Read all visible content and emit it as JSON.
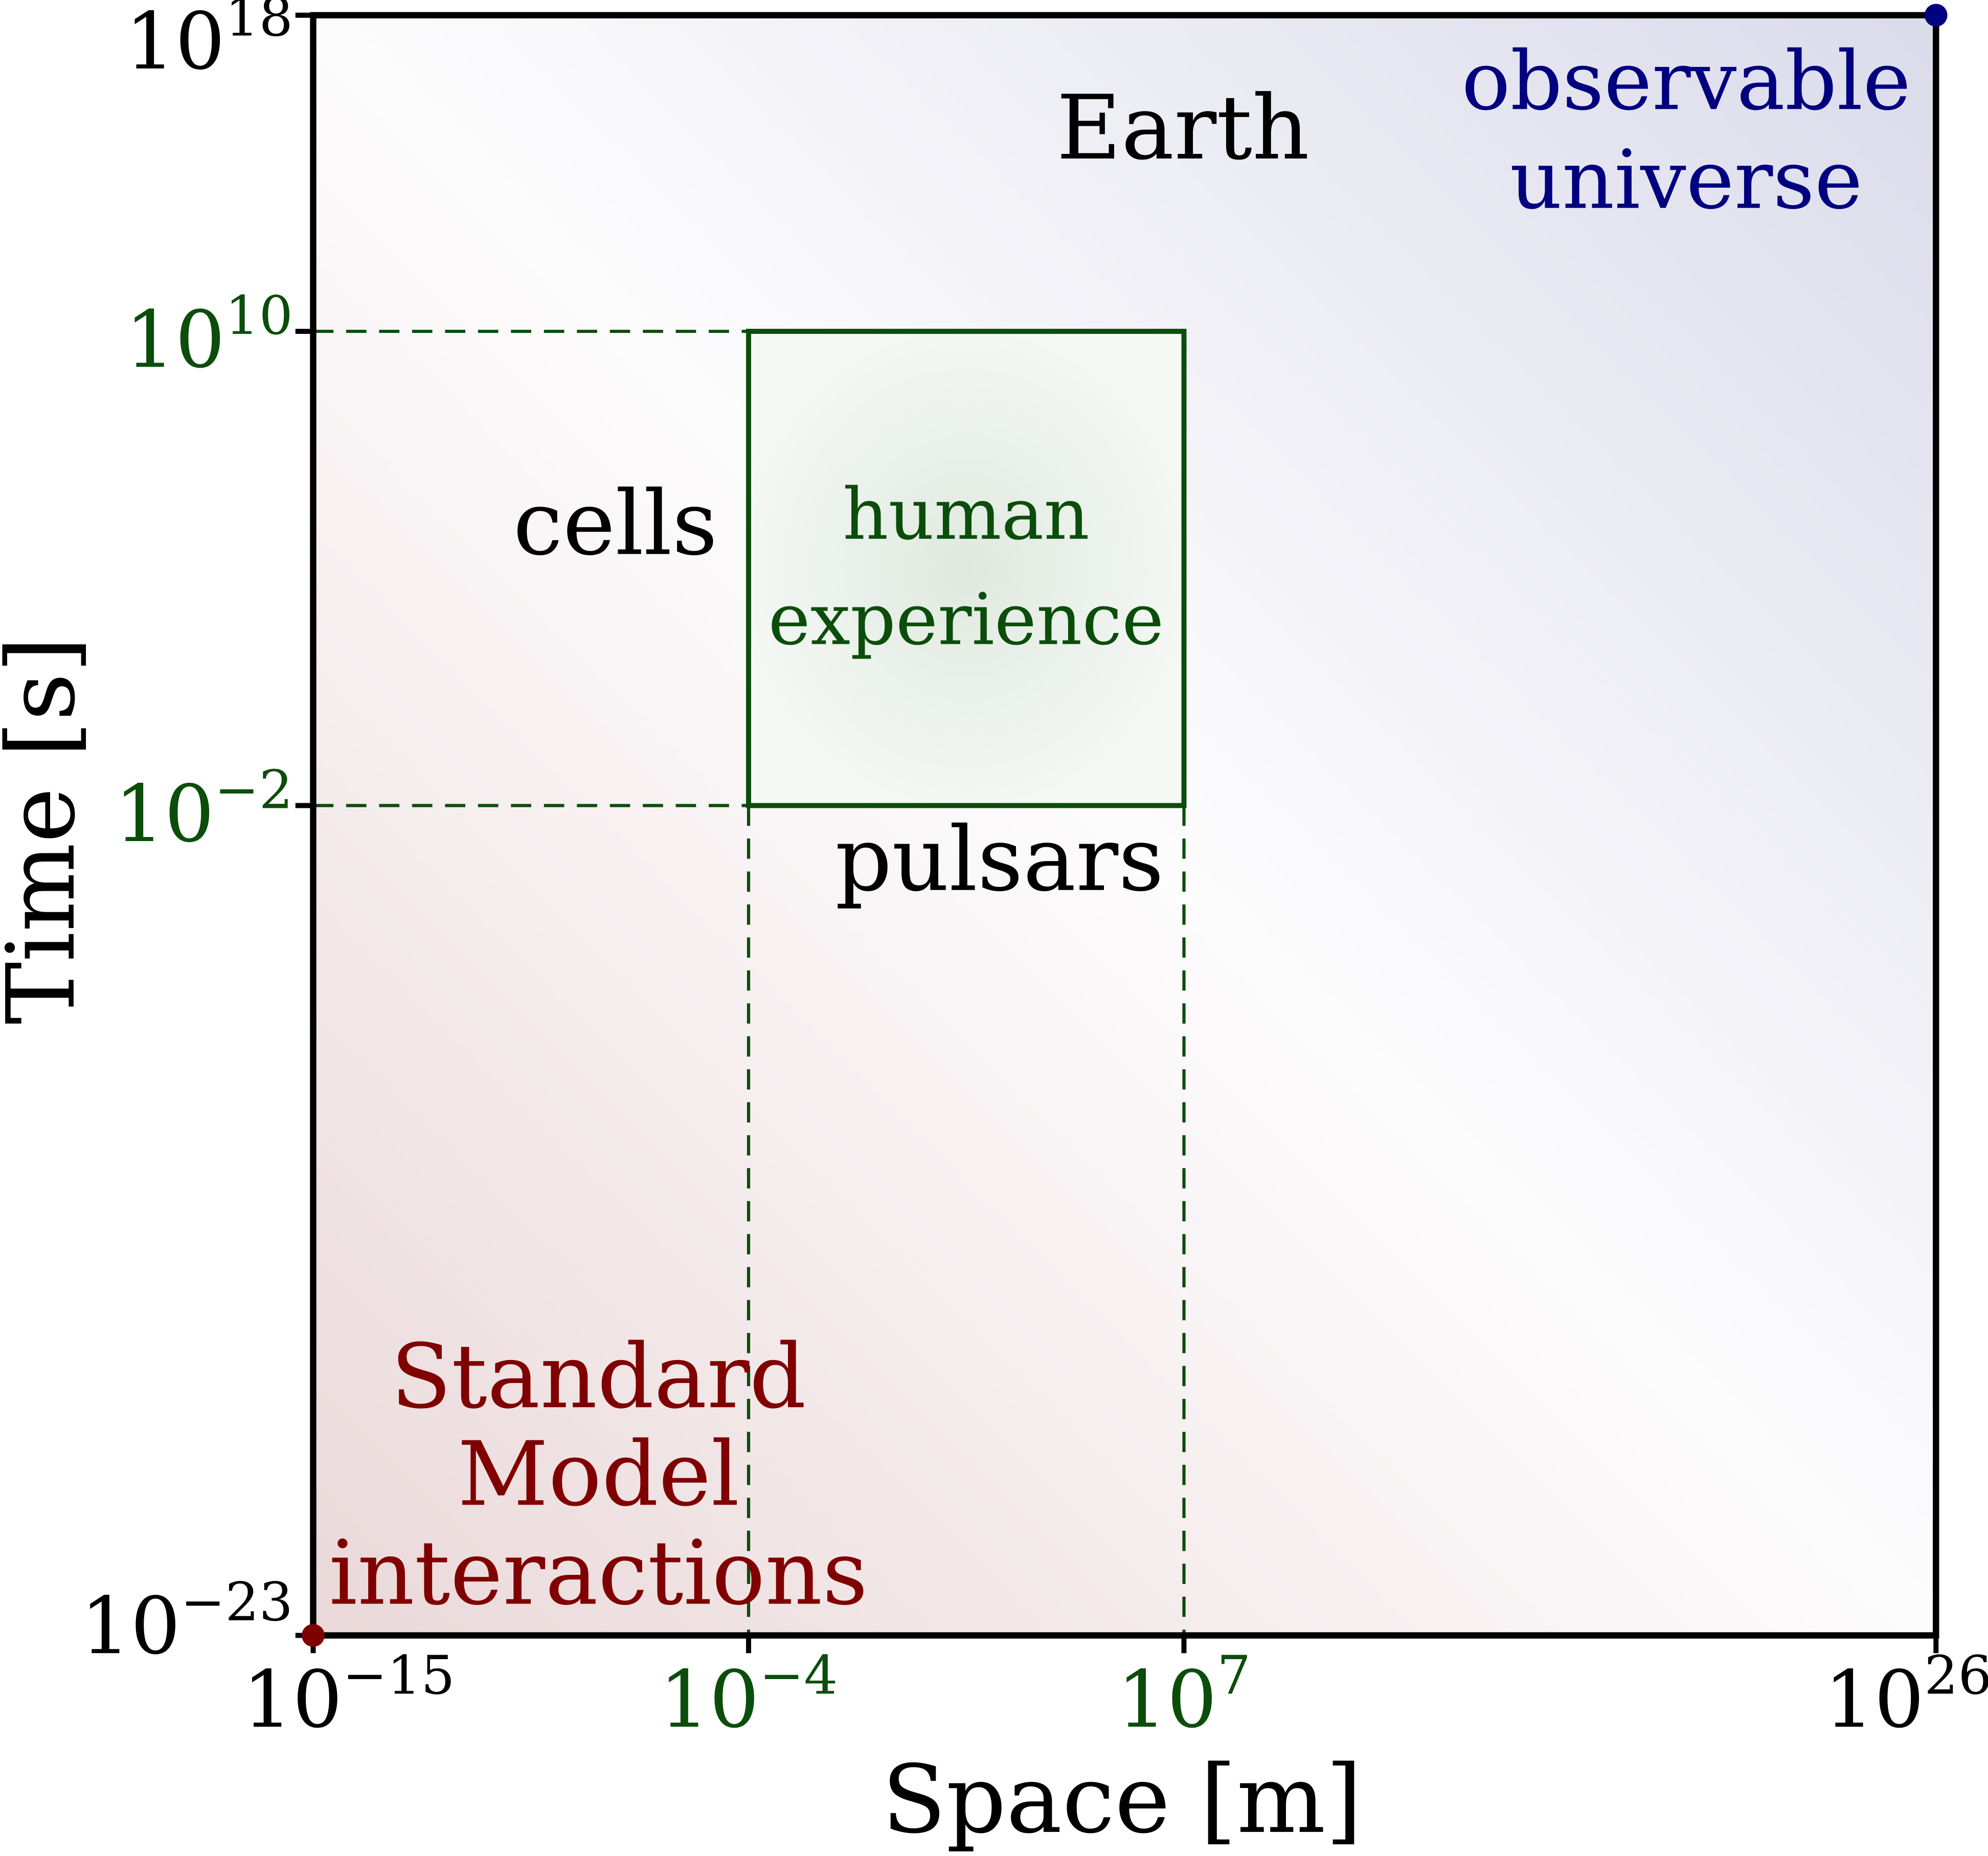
{
  "chart_data": {
    "type": "scatter",
    "xlabel": "Space [m]",
    "ylabel": "Time [s]",
    "x_scale": "log",
    "y_scale": "log",
    "xlim_exponent": [
      -15,
      26
    ],
    "ylim_exponent": [
      -23,
      18
    ],
    "grid": false,
    "x_ticks": [
      {
        "base": "10",
        "exp": "−15",
        "value": -15,
        "color": "#000000"
      },
      {
        "base": "10",
        "exp": "−4",
        "value": -4,
        "color": "#0b4d0b"
      },
      {
        "base": "10",
        "exp": "7",
        "value": 7,
        "color": "#0b4d0b"
      },
      {
        "base": "10",
        "exp": "26",
        "value": 26,
        "color": "#000000"
      }
    ],
    "y_ticks": [
      {
        "base": "10",
        "exp": "18",
        "value": 18,
        "color": "#000000"
      },
      {
        "base": "10",
        "exp": "10",
        "value": 10,
        "color": "#0b4d0b"
      },
      {
        "base": "10",
        "exp": "−2",
        "value": -2,
        "color": "#0b4d0b"
      },
      {
        "base": "10",
        "exp": "−23",
        "value": -23,
        "color": "#000000"
      }
    ],
    "points": [
      {
        "x_exp": -15,
        "y_exp": -23,
        "color": "#800000"
      },
      {
        "x_exp": 26,
        "y_exp": 18,
        "color": "#000080"
      }
    ],
    "region": {
      "x_exp": [
        -4,
        7
      ],
      "y_exp": [
        -2,
        10
      ],
      "color": "#0b4d0b"
    },
    "annotations": {
      "earth": "Earth",
      "observable_universe": [
        "observable",
        "universe"
      ],
      "cells": "cells",
      "human_experience": [
        "human",
        "experience"
      ],
      "pulsars": "pulsars",
      "standard_model": [
        "Standard",
        "Model",
        "interactions"
      ]
    },
    "colors": {
      "standard_model": "#800000",
      "universe": "#000080",
      "human": "#0b4d0b",
      "axes": "#000000"
    }
  }
}
